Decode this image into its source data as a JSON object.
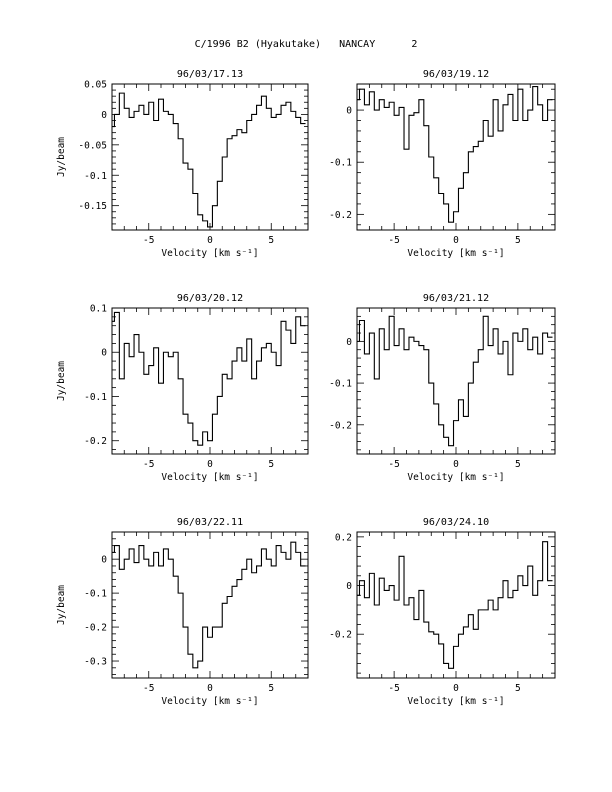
{
  "page_title": "C/1996 B2 (Hyakutake)   NANCAY      2",
  "chart_data": [
    {
      "type": "line",
      "title": "96/03/17.13",
      "xlabel": "Velocity [km s⁻¹]",
      "ylabel": "Jy/beam",
      "xlim": [
        -8,
        8
      ],
      "ylim": [
        -0.19,
        0.05
      ],
      "xticks": [
        -5,
        0,
        5
      ],
      "yticks": [
        0.05,
        0,
        -0.05,
        -0.1,
        -0.15
      ],
      "ytick_labels": [
        "0.05",
        "0",
        "-0.05",
        "-0.1",
        "-0.15"
      ],
      "step": true,
      "series": [
        {
          "x": [
            -8,
            -7.6,
            -7.2,
            -6.8,
            -6.4,
            -6,
            -5.6,
            -5.2,
            -4.8,
            -4.4,
            -4,
            -3.6,
            -3.2,
            -2.8,
            -2.4,
            -2,
            -1.6,
            -1.2,
            -0.8,
            -0.4,
            0,
            0.4,
            0.8,
            1.2,
            1.6,
            2,
            2.4,
            2.8,
            3.2,
            3.6,
            4,
            4.4,
            4.8,
            5.2,
            5.6,
            6,
            6.4,
            6.8,
            7.2,
            7.6
          ],
          "values": [
            -0.02,
            0.0,
            0.035,
            0.01,
            -0.005,
            0.005,
            0.015,
            0.0,
            0.02,
            -0.01,
            0.025,
            0.005,
            0.0,
            -0.015,
            -0.04,
            -0.08,
            -0.09,
            -0.13,
            -0.165,
            -0.175,
            -0.185,
            -0.15,
            -0.11,
            -0.07,
            -0.04,
            -0.035,
            -0.025,
            -0.03,
            -0.01,
            0.0,
            0.015,
            0.03,
            0.01,
            -0.005,
            0.0,
            0.015,
            0.02,
            0.005,
            -0.005,
            -0.015
          ]
        }
      ]
    },
    {
      "type": "line",
      "title": "96/03/19.12",
      "xlabel": "Velocity [km s⁻¹]",
      "ylabel": "",
      "xlim": [
        -8,
        8
      ],
      "ylim": [
        -0.23,
        0.05
      ],
      "xticks": [
        -5,
        0,
        5
      ],
      "yticks": [
        0,
        -0.1,
        -0.2
      ],
      "ytick_labels": [
        "0",
        "-0.1",
        "-0.2"
      ],
      "step": true,
      "series": [
        {
          "x": [
            -8,
            -7.6,
            -7.2,
            -6.8,
            -6.4,
            -6,
            -5.6,
            -5.2,
            -4.8,
            -4.4,
            -4,
            -3.6,
            -3.2,
            -2.8,
            -2.4,
            -2,
            -1.6,
            -1.2,
            -0.8,
            -0.4,
            0,
            0.4,
            0.8,
            1.2,
            1.6,
            2,
            2.4,
            2.8,
            3.2,
            3.6,
            4,
            4.4,
            4.8,
            5.2,
            5.6,
            6,
            6.4,
            6.8,
            7.2,
            7.6
          ],
          "values": [
            0.02,
            0.04,
            0.01,
            0.035,
            0.0,
            0.02,
            0.005,
            0.015,
            -0.01,
            0.005,
            -0.075,
            -0.01,
            -0.005,
            0.02,
            -0.03,
            -0.09,
            -0.13,
            -0.16,
            -0.18,
            -0.215,
            -0.195,
            -0.15,
            -0.12,
            -0.08,
            -0.07,
            -0.06,
            -0.02,
            -0.05,
            0.02,
            -0.04,
            0.01,
            0.03,
            -0.02,
            0.04,
            -0.02,
            0.0,
            0.045,
            0.01,
            -0.02,
            0.02
          ]
        }
      ]
    },
    {
      "type": "line",
      "title": "96/03/20.12",
      "xlabel": "Velocity [km s⁻¹]",
      "ylabel": "Jy/beam",
      "xlim": [
        -8,
        8
      ],
      "ylim": [
        -0.23,
        0.1
      ],
      "xticks": [
        -5,
        0,
        5
      ],
      "yticks": [
        0.1,
        0,
        -0.1,
        -0.2
      ],
      "ytick_labels": [
        "0.1",
        "0",
        "-0.1",
        "-0.2"
      ],
      "step": true,
      "series": [
        {
          "x": [
            -8,
            -7.6,
            -7.2,
            -6.8,
            -6.4,
            -6,
            -5.6,
            -5.2,
            -4.8,
            -4.4,
            -4,
            -3.6,
            -3.2,
            -2.8,
            -2.4,
            -2,
            -1.6,
            -1.2,
            -0.8,
            -0.4,
            0,
            0.4,
            0.8,
            1.2,
            1.6,
            2,
            2.4,
            2.8,
            3.2,
            3.6,
            4,
            4.4,
            4.8,
            5.2,
            5.6,
            6,
            6.4,
            6.8,
            7.2,
            7.6
          ],
          "values": [
            0.07,
            0.09,
            -0.06,
            0.02,
            -0.01,
            0.04,
            0.0,
            -0.05,
            -0.03,
            0.01,
            -0.07,
            0.0,
            -0.01,
            0.0,
            -0.06,
            -0.14,
            -0.16,
            -0.2,
            -0.21,
            -0.18,
            -0.2,
            -0.14,
            -0.1,
            -0.05,
            -0.06,
            -0.02,
            0.01,
            -0.02,
            0.03,
            -0.06,
            -0.02,
            0.01,
            0.02,
            0.0,
            -0.03,
            0.07,
            0.05,
            0.02,
            0.08,
            0.06
          ]
        }
      ]
    },
    {
      "type": "line",
      "title": "96/03/21.12",
      "xlabel": "Velocity [km s⁻¹]",
      "ylabel": "",
      "xlim": [
        -8,
        8
      ],
      "ylim": [
        -0.27,
        0.08
      ],
      "xticks": [
        -5,
        0,
        5
      ],
      "yticks": [
        0,
        -0.1,
        -0.2
      ],
      "ytick_labels": [
        "0",
        "-0.1",
        "-0.2"
      ],
      "step": true,
      "series": [
        {
          "x": [
            -8,
            -7.6,
            -7.2,
            -6.8,
            -6.4,
            -6,
            -5.6,
            -5.2,
            -4.8,
            -4.4,
            -4,
            -3.6,
            -3.2,
            -2.8,
            -2.4,
            -2,
            -1.6,
            -1.2,
            -0.8,
            -0.4,
            0,
            0.4,
            0.8,
            1.2,
            1.6,
            2,
            2.4,
            2.8,
            3.2,
            3.6,
            4,
            4.4,
            4.8,
            5.2,
            5.6,
            6,
            6.4,
            6.8,
            7.2,
            7.6
          ],
          "values": [
            0.0,
            0.05,
            -0.03,
            0.02,
            -0.09,
            0.03,
            -0.02,
            0.06,
            -0.01,
            0.03,
            -0.02,
            0.01,
            0.0,
            -0.01,
            -0.02,
            -0.1,
            -0.15,
            -0.2,
            -0.23,
            -0.25,
            -0.19,
            -0.14,
            -0.18,
            -0.1,
            -0.05,
            -0.02,
            0.06,
            -0.01,
            0.03,
            -0.03,
            0.0,
            -0.08,
            0.02,
            0.0,
            0.03,
            -0.02,
            0.01,
            -0.03,
            0.02,
            0.01
          ]
        }
      ]
    },
    {
      "type": "line",
      "title": "96/03/22.11",
      "xlabel": "Velocity [km s⁻¹]",
      "ylabel": "Jy/beam",
      "xlim": [
        -8,
        8
      ],
      "ylim": [
        -0.35,
        0.08
      ],
      "xticks": [
        -5,
        0,
        5
      ],
      "yticks": [
        0,
        -0.1,
        -0.2,
        -0.3
      ],
      "ytick_labels": [
        "0",
        "-0.1",
        "-0.2",
        "-0.3"
      ],
      "step": true,
      "series": [
        {
          "x": [
            -8,
            -7.6,
            -7.2,
            -6.8,
            -6.4,
            -6,
            -5.6,
            -5.2,
            -4.8,
            -4.4,
            -4,
            -3.6,
            -3.2,
            -2.8,
            -2.4,
            -2,
            -1.6,
            -1.2,
            -0.8,
            -0.4,
            0,
            0.4,
            0.8,
            1.2,
            1.6,
            2,
            2.4,
            2.8,
            3.2,
            3.6,
            4,
            4.4,
            4.8,
            5.2,
            5.6,
            6,
            6.4,
            6.8,
            7.2,
            7.6
          ],
          "values": [
            0.02,
            0.04,
            -0.03,
            0.0,
            0.03,
            -0.01,
            0.04,
            0.0,
            -0.02,
            0.02,
            -0.02,
            0.03,
            0.0,
            -0.05,
            -0.1,
            -0.2,
            -0.28,
            -0.32,
            -0.3,
            -0.2,
            -0.23,
            -0.2,
            -0.2,
            -0.13,
            -0.11,
            -0.08,
            -0.06,
            -0.03,
            0.0,
            -0.04,
            -0.02,
            0.03,
            0.0,
            -0.02,
            0.04,
            0.02,
            0.0,
            0.05,
            0.02,
            -0.02
          ]
        }
      ]
    },
    {
      "type": "line",
      "title": "96/03/24.10",
      "xlabel": "Velocity [km s⁻¹]",
      "ylabel": "",
      "xlim": [
        -8,
        8
      ],
      "ylim": [
        -0.38,
        0.22
      ],
      "xticks": [
        -5,
        0,
        5
      ],
      "yticks": [
        0.2,
        0,
        -0.2
      ],
      "ytick_labels": [
        "0.2",
        "0",
        "-0.2"
      ],
      "step": true,
      "series": [
        {
          "x": [
            -8,
            -7.6,
            -7.2,
            -6.8,
            -6.4,
            -6,
            -5.6,
            -5.2,
            -4.8,
            -4.4,
            -4,
            -3.6,
            -3.2,
            -2.8,
            -2.4,
            -2,
            -1.6,
            -1.2,
            -0.8,
            -0.4,
            0,
            0.4,
            0.8,
            1.2,
            1.6,
            2,
            2.4,
            2.8,
            3.2,
            3.6,
            4,
            4.4,
            4.8,
            5.2,
            5.6,
            6,
            6.4,
            6.8,
            7.2,
            7.6
          ],
          "values": [
            -0.04,
            0.02,
            -0.05,
            0.05,
            -0.08,
            0.03,
            -0.02,
            0.0,
            -0.06,
            0.12,
            -0.08,
            -0.05,
            -0.14,
            -0.02,
            -0.15,
            -0.19,
            -0.2,
            -0.24,
            -0.32,
            -0.34,
            -0.25,
            -0.2,
            -0.17,
            -0.12,
            -0.18,
            -0.1,
            -0.1,
            -0.06,
            -0.1,
            -0.05,
            0.02,
            -0.05,
            -0.02,
            0.04,
            0.0,
            0.08,
            -0.04,
            0.02,
            0.18,
            0.02
          ]
        }
      ]
    }
  ]
}
